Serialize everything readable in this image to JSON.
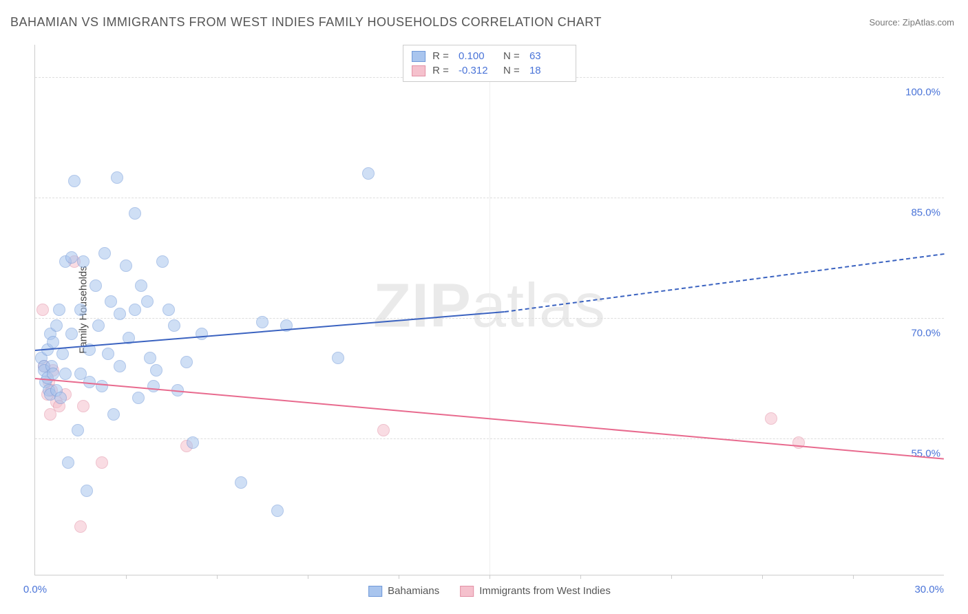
{
  "title": "BAHAMIAN VS IMMIGRANTS FROM WEST INDIES FAMILY HOUSEHOLDS CORRELATION CHART",
  "source": "Source: ZipAtlas.com",
  "ylabel": "Family Households",
  "watermark_parts": {
    "bold": "ZIP",
    "light": "atlas"
  },
  "chart": {
    "type": "scatter",
    "xlim": [
      0,
      30
    ],
    "ylim": [
      38,
      104
    ],
    "x_ticks": [
      0,
      30
    ],
    "x_tick_labels": [
      "0.0%",
      "30.0%"
    ],
    "x_minor_ticks": [
      3,
      6,
      9,
      12,
      15,
      18,
      21,
      24,
      27
    ],
    "x_grid_at": [
      15
    ],
    "y_ticks": [
      55,
      70,
      85,
      100
    ],
    "y_tick_labels": [
      "55.0%",
      "70.0%",
      "85.0%",
      "100.0%"
    ],
    "background_color": "#ffffff",
    "series": {
      "bahamians": {
        "label": "Bahamians",
        "fill": "#a9c5ee",
        "stroke": "#6f98d8",
        "R": "0.100",
        "N": "63",
        "trend": {
          "x1": 0,
          "y1": 66.0,
          "x2": 15.5,
          "y2": 70.8,
          "dash_x2": 30,
          "dash_y2": 78.0,
          "color": "#3a62c0"
        },
        "points": [
          [
            0.2,
            65
          ],
          [
            0.3,
            64
          ],
          [
            0.3,
            63.5
          ],
          [
            0.35,
            62
          ],
          [
            0.4,
            66
          ],
          [
            0.4,
            62.5
          ],
          [
            0.45,
            61
          ],
          [
            0.5,
            68
          ],
          [
            0.5,
            60.5
          ],
          [
            0.55,
            64
          ],
          [
            0.6,
            63
          ],
          [
            0.6,
            67
          ],
          [
            0.7,
            61
          ],
          [
            0.7,
            69
          ],
          [
            0.8,
            71
          ],
          [
            0.85,
            60
          ],
          [
            0.9,
            65.5
          ],
          [
            1.0,
            63
          ],
          [
            1.0,
            77
          ],
          [
            1.1,
            52
          ],
          [
            1.2,
            77.5
          ],
          [
            1.2,
            68
          ],
          [
            1.3,
            87
          ],
          [
            1.4,
            56
          ],
          [
            1.5,
            63
          ],
          [
            1.5,
            71
          ],
          [
            1.6,
            77
          ],
          [
            1.7,
            48.5
          ],
          [
            1.8,
            66
          ],
          [
            1.8,
            62
          ],
          [
            2.0,
            74
          ],
          [
            2.1,
            69
          ],
          [
            2.2,
            61.5
          ],
          [
            2.3,
            78
          ],
          [
            2.4,
            65.5
          ],
          [
            2.5,
            72
          ],
          [
            2.6,
            58
          ],
          [
            2.7,
            87.5
          ],
          [
            2.8,
            64
          ],
          [
            2.8,
            70.5
          ],
          [
            3.0,
            76.5
          ],
          [
            3.1,
            67.5
          ],
          [
            3.3,
            71
          ],
          [
            3.3,
            83
          ],
          [
            3.4,
            60
          ],
          [
            3.5,
            74
          ],
          [
            3.7,
            72
          ],
          [
            3.8,
            65
          ],
          [
            3.9,
            61.5
          ],
          [
            4.0,
            63.5
          ],
          [
            4.2,
            77
          ],
          [
            4.4,
            71
          ],
          [
            4.6,
            69
          ],
          [
            4.7,
            61
          ],
          [
            5.0,
            64.5
          ],
          [
            5.2,
            54.5
          ],
          [
            5.5,
            68
          ],
          [
            6.8,
            49.5
          ],
          [
            7.5,
            69.5
          ],
          [
            8.0,
            46
          ],
          [
            8.3,
            69
          ],
          [
            10.0,
            65
          ],
          [
            11.0,
            88
          ]
        ]
      },
      "immigrants": {
        "label": "Immigrants from West Indies",
        "fill": "#f5c1cd",
        "stroke": "#e290a5",
        "R": "-0.312",
        "N": "18",
        "trend": {
          "x1": 0,
          "y1": 62.5,
          "x2": 30,
          "y2": 52.5,
          "color": "#e86a8e"
        },
        "points": [
          [
            0.25,
            71
          ],
          [
            0.3,
            64
          ],
          [
            0.4,
            60.5
          ],
          [
            0.45,
            62
          ],
          [
            0.5,
            58
          ],
          [
            0.55,
            61
          ],
          [
            0.6,
            63.5
          ],
          [
            0.7,
            59.5
          ],
          [
            0.8,
            59
          ],
          [
            1.0,
            60.5
          ],
          [
            1.3,
            77
          ],
          [
            1.5,
            44
          ],
          [
            1.6,
            59
          ],
          [
            2.2,
            52
          ],
          [
            5.0,
            54
          ],
          [
            11.5,
            56
          ],
          [
            24.3,
            57.5
          ],
          [
            25.2,
            54.5
          ]
        ]
      }
    }
  }
}
